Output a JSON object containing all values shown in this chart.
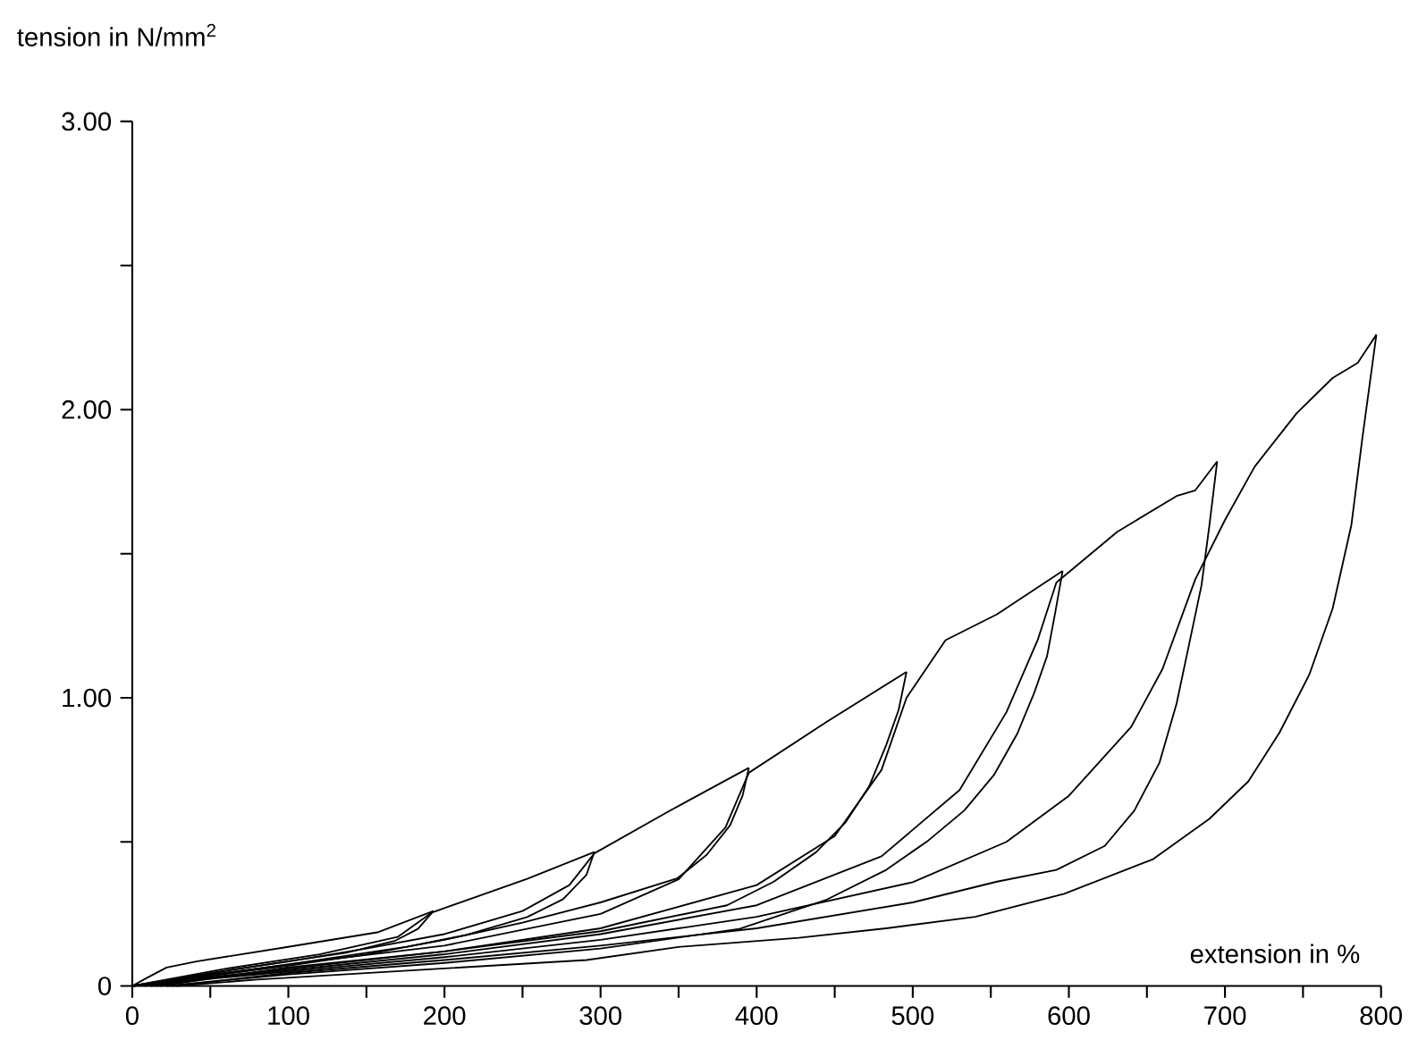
{
  "chart_data": {
    "type": "line",
    "xlabel": "extension in %",
    "ylabel": "tension in N/mm$^{2}$",
    "xlim": [
      0,
      800
    ],
    "ylim": [
      0,
      3
    ],
    "xticks": [
      0,
      {
        "value": 50,
        "label": null
      },
      100,
      {
        "value": 150,
        "label": null
      },
      200,
      {
        "value": 250,
        "label": null
      },
      300,
      {
        "value": 350,
        "label": null
      },
      400,
      {
        "value": 450,
        "label": null
      },
      500,
      {
        "value": 550,
        "label": null
      },
      600,
      {
        "value": 650,
        "label": null
      },
      700,
      {
        "value": 750,
        "label": null
      },
      800
    ],
    "yticks": [
      0,
      {
        "value": 0.5,
        "label": null
      },
      {
        "value": 1,
        "label": "1.00"
      },
      {
        "value": 1.5,
        "label": null
      },
      {
        "value": 2,
        "label": "2.00"
      },
      {
        "value": 2.5,
        "label": null
      },
      {
        "value": 3,
        "label": "3.00"
      }
    ],
    "series": [
      {
        "color": "#000000",
        "x": [
          0,
          10,
          22,
          41,
          99,
          157,
          193
        ],
        "values": [
          0,
          0.03,
          0.064,
          0.085,
          0.135,
          0.186,
          0.26
        ]
      },
      {
        "color": "#000000",
        "x": [
          8,
          61,
          99,
          137,
          168,
          183,
          193
        ],
        "values": [
          0,
          0.054,
          0.085,
          0.115,
          0.156,
          0.198,
          0.26
        ]
      },
      {
        "color": "#000000",
        "x": [
          0,
          60,
          120,
          170,
          192,
          253,
          296
        ],
        "values": [
          0,
          0.06,
          0.11,
          0.17,
          0.255,
          0.372,
          0.465
        ]
      },
      {
        "color": "#000000",
        "x": [
          12,
          41,
          99,
          176,
          214,
          253,
          276,
          291,
          296
        ],
        "values": [
          0,
          0.033,
          0.074,
          0.136,
          0.177,
          0.239,
          0.301,
          0.386,
          0.465
        ]
      },
      {
        "color": "#000000",
        "x": [
          0,
          50,
          100,
          150,
          200,
          250,
          280,
          296,
          345,
          395
        ],
        "values": [
          0,
          0.045,
          0.085,
          0.13,
          0.18,
          0.26,
          0.35,
          0.46,
          0.61,
          0.757
        ]
      },
      {
        "color": "#000000",
        "x": [
          15,
          50,
          100,
          150,
          200,
          250,
          300,
          349,
          368,
          383,
          391,
          395
        ],
        "values": [
          0,
          0.035,
          0.07,
          0.11,
          0.16,
          0.22,
          0.29,
          0.373,
          0.455,
          0.558,
          0.661,
          0.757
        ]
      },
      {
        "color": "#000000",
        "x": [
          0,
          100,
          200,
          300,
          350,
          380,
          395,
          445,
          496
        ],
        "values": [
          0,
          0.075,
          0.14,
          0.25,
          0.37,
          0.55,
          0.74,
          0.917,
          1.09
        ]
      },
      {
        "color": "#000000",
        "x": [
          18,
          100,
          200,
          300,
          381,
          411,
          438,
          457,
          472,
          483,
          491,
          496
        ],
        "values": [
          0,
          0.065,
          0.12,
          0.19,
          0.28,
          0.362,
          0.464,
          0.568,
          0.692,
          0.836,
          0.959,
          1.09
        ]
      },
      {
        "color": "#000000",
        "x": [
          0,
          100,
          200,
          300,
          400,
          450,
          480,
          496,
          521,
          554,
          596
        ],
        "values": [
          0,
          0.06,
          0.12,
          0.2,
          0.35,
          0.52,
          0.75,
          1.0,
          1.2,
          1.29,
          1.44
        ]
      },
      {
        "color": "#000000",
        "x": [
          22,
          100,
          200,
          300,
          389,
          445,
          483,
          510,
          533,
          552,
          567,
          578,
          586,
          591,
          596
        ],
        "values": [
          0,
          0.04,
          0.08,
          0.13,
          0.198,
          0.3,
          0.403,
          0.505,
          0.609,
          0.732,
          0.876,
          1.02,
          1.144,
          1.288,
          1.44
        ]
      },
      {
        "color": "#000000",
        "x": [
          0,
          100,
          200,
          300,
          400,
          480,
          530,
          560,
          580,
          592,
          631,
          669,
          681,
          695
        ],
        "values": [
          0,
          0.055,
          0.11,
          0.18,
          0.28,
          0.45,
          0.68,
          0.95,
          1.2,
          1.4,
          1.576,
          1.7,
          1.72,
          1.82
        ]
      },
      {
        "color": "#000000",
        "x": [
          25,
          100,
          200,
          300,
          400,
          500,
          554,
          592,
          623,
          642,
          658,
          669,
          677,
          685,
          690,
          695
        ],
        "values": [
          0,
          0.045,
          0.09,
          0.14,
          0.2,
          0.29,
          0.362,
          0.403,
          0.486,
          0.609,
          0.774,
          0.98,
          1.185,
          1.391,
          1.597,
          1.82
        ]
      },
      {
        "color": "#000000",
        "x": [
          0,
          100,
          200,
          300,
          400,
          500,
          560,
          600,
          640,
          660,
          681,
          700,
          719,
          746,
          769,
          785,
          797
        ],
        "values": [
          0,
          0.05,
          0.1,
          0.16,
          0.24,
          0.36,
          0.5,
          0.66,
          0.9,
          1.1,
          1.411,
          1.617,
          1.802,
          1.988,
          2.11,
          2.162,
          2.26
        ]
      },
      {
        "color": "#000000",
        "x": [
          28,
          80,
          176,
          291,
          351,
          427,
          483,
          540,
          597,
          654,
          690,
          715,
          735,
          754,
          769,
          781,
          788,
          797
        ],
        "values": [
          0,
          0.022,
          0.053,
          0.09,
          0.136,
          0.167,
          0.2,
          0.24,
          0.32,
          0.44,
          0.58,
          0.71,
          0.88,
          1.08,
          1.31,
          1.6,
          1.9,
          2.26
        ]
      }
    ]
  }
}
